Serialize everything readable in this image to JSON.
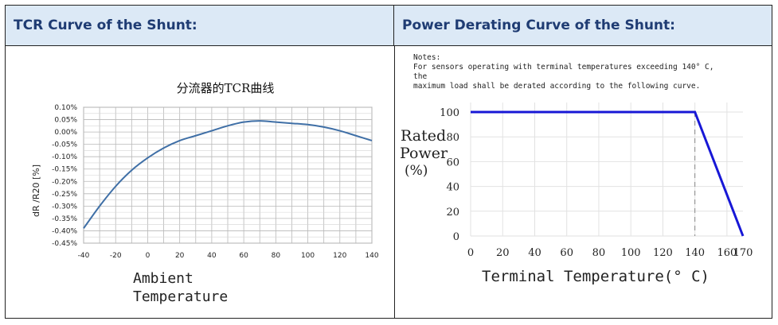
{
  "headers": {
    "left": "TCR Curve of  the Shunt:",
    "right": "Power Derating Curve of  the Shunt:"
  },
  "colors": {
    "header_bg": "#dce9f6",
    "header_text": "#1f3c73",
    "tcr_line": "#3f6fa6",
    "derating_line": "#1717d6"
  },
  "chart_data": [
    {
      "type": "line",
      "title": "分流器的TCR曲线",
      "xlabel": "Ambient Temperature",
      "xlabel_lines": [
        "Ambient",
        "Temperature"
      ],
      "ylabel": "dR /R20 [%]",
      "xlim": [
        -40,
        140
      ],
      "ylim": [
        -0.45,
        0.1
      ],
      "x_ticks": [
        -40,
        -20,
        0,
        20,
        40,
        60,
        80,
        100,
        120,
        140
      ],
      "y_ticks": [
        0.1,
        0.05,
        0.0,
        -0.05,
        -0.1,
        -0.15,
        -0.2,
        -0.25,
        -0.3,
        -0.35,
        -0.4,
        -0.45
      ],
      "y_tick_labels": [
        "0.10%",
        "0.05%",
        "0.00%",
        "-0.05%",
        "-0.10%",
        "-0.15%",
        "-0.20%",
        "-0.25%",
        "-0.30%",
        "-0.35%",
        "-0.40%",
        "-0.45%"
      ],
      "grid": true,
      "series": [
        {
          "x": [
            -40,
            -30,
            -20,
            -10,
            0,
            10,
            20,
            30,
            40,
            50,
            60,
            70,
            80,
            90,
            100,
            110,
            120,
            130,
            140
          ],
          "y": [
            -0.39,
            -0.3,
            -0.22,
            -0.155,
            -0.105,
            -0.065,
            -0.035,
            -0.015,
            0.005,
            0.025,
            0.04,
            0.045,
            0.04,
            0.035,
            0.03,
            0.02,
            0.005,
            -0.015,
            -0.035
          ]
        }
      ]
    },
    {
      "type": "line",
      "notes": [
        "Notes:",
        "For sensors operating with terminal temperatures exceeding 140° C,",
        "the",
        "maximum load shall be derated according to the following curve."
      ],
      "xlabel": "Terminal Temperature(° C)",
      "ylabel_lines": [
        "Rated",
        "Power",
        "(%)"
      ],
      "xlim": [
        0,
        170
      ],
      "ylim": [
        0,
        100
      ],
      "x_ticks": [
        0,
        20,
        40,
        60,
        80,
        100,
        120,
        140,
        160,
        170
      ],
      "y_ticks": [
        0,
        20,
        40,
        60,
        80,
        100
      ],
      "grid": true,
      "series": [
        {
          "x": [
            0,
            140,
            170
          ],
          "y": [
            100,
            100,
            0
          ]
        }
      ],
      "annotations": [
        {
          "type": "dashed-vertical",
          "x": 140
        }
      ]
    }
  ]
}
